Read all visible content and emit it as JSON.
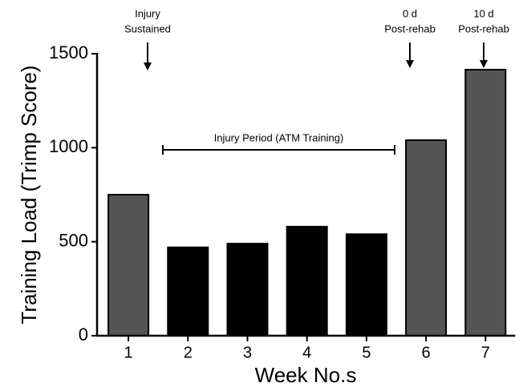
{
  "chart_data": {
    "type": "bar",
    "x_label": "Week No.s",
    "y_label": "Training Load (Trimp Score)",
    "categories": [
      "1",
      "2",
      "3",
      "4",
      "5",
      "6",
      "7"
    ],
    "values": [
      750,
      470,
      490,
      580,
      540,
      1040,
      1415
    ],
    "colors": [
      "#555555",
      "#000000",
      "#000000",
      "#000000",
      "#000000",
      "#555555",
      "#555555"
    ],
    "ylim": [
      0,
      1500
    ],
    "yticks": [
      0,
      500,
      1000,
      1500
    ],
    "annotations": [
      {
        "lines": [
          "Injury",
          "Sustained"
        ]
      },
      {
        "lines": [
          "0 d",
          "Post-rehab"
        ]
      },
      {
        "lines": [
          "10 d",
          "Post-rehab"
        ]
      },
      {
        "lines": [
          "Injury Period (ATM Training)"
        ]
      }
    ]
  }
}
